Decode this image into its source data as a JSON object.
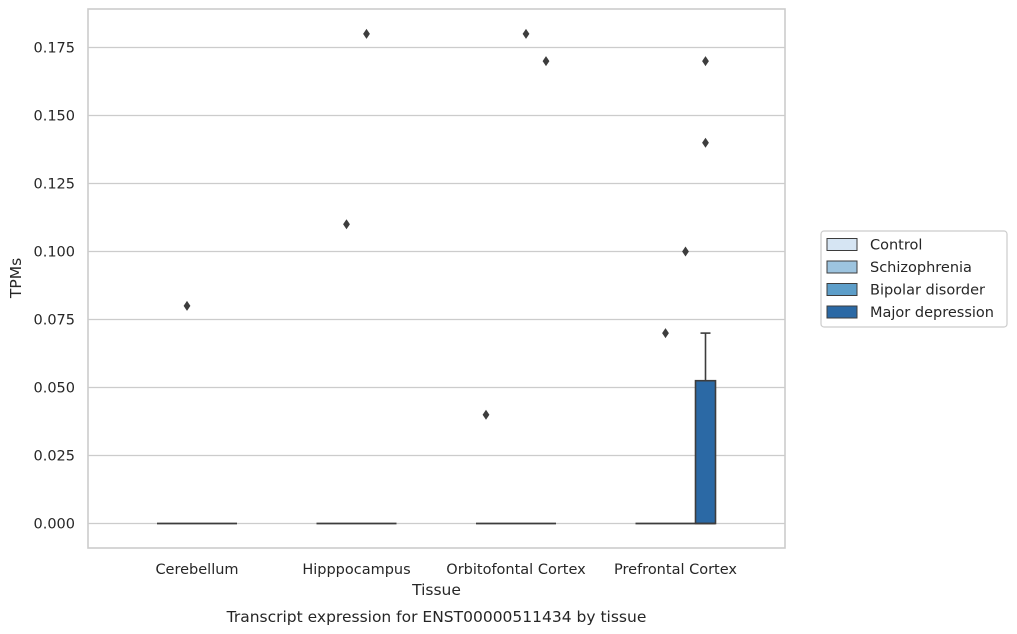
{
  "caption": "Transcript expression for ENST00000511434 by tissue",
  "chart_data": {
    "type": "box",
    "title": "",
    "xlabel": "Tissue",
    "ylabel": "TPMs",
    "ylim": [
      -0.009,
      0.189
    ],
    "yticks": [
      "0.000",
      "0.025",
      "0.050",
      "0.075",
      "0.100",
      "0.125",
      "0.150",
      "0.175"
    ],
    "ytick_values": [
      0,
      0.025,
      0.05,
      0.075,
      0.1,
      0.125,
      0.15,
      0.175
    ],
    "grid": "horizontal",
    "legend_position": "right",
    "categories": [
      "Cerebellum",
      "Hipppocampus",
      "Orbitofontal Cortex",
      "Prefrontal Cortex"
    ],
    "series": [
      {
        "name": "Control",
        "color": "#d6e5f3",
        "boxes": [
          {
            "q1": 0,
            "median": 0,
            "q3": 0,
            "whisker_low": 0,
            "whisker_high": 0,
            "outliers": []
          },
          {
            "q1": 0,
            "median": 0,
            "q3": 0,
            "whisker_low": 0,
            "whisker_high": 0,
            "outliers": []
          },
          {
            "q1": 0,
            "median": 0,
            "q3": 0,
            "whisker_low": 0,
            "whisker_high": 0,
            "outliers": [
              0.04
            ]
          },
          {
            "q1": 0,
            "median": 0,
            "q3": 0,
            "whisker_low": 0,
            "whisker_high": 0,
            "outliers": []
          }
        ]
      },
      {
        "name": "Schizophrenia",
        "color": "#9dc4df",
        "boxes": [
          {
            "q1": 0,
            "median": 0,
            "q3": 0,
            "whisker_low": 0,
            "whisker_high": 0,
            "outliers": [
              0.08
            ]
          },
          {
            "q1": 0,
            "median": 0,
            "q3": 0,
            "whisker_low": 0,
            "whisker_high": 0,
            "outliers": [
              0.11
            ]
          },
          {
            "q1": 0,
            "median": 0,
            "q3": 0,
            "whisker_low": 0,
            "whisker_high": 0,
            "outliers": []
          },
          {
            "q1": 0,
            "median": 0,
            "q3": 0,
            "whisker_low": 0,
            "whisker_high": 0,
            "outliers": [
              0.07
            ]
          }
        ]
      },
      {
        "name": "Bipolar disorder",
        "color": "#5d9ec9",
        "boxes": [
          {
            "q1": 0,
            "median": 0,
            "q3": 0,
            "whisker_low": 0,
            "whisker_high": 0,
            "outliers": []
          },
          {
            "q1": 0,
            "median": 0,
            "q3": 0,
            "whisker_low": 0,
            "whisker_high": 0,
            "outliers": [
              0.18
            ]
          },
          {
            "q1": 0,
            "median": 0,
            "q3": 0,
            "whisker_low": 0,
            "whisker_high": 0,
            "outliers": [
              0.18
            ]
          },
          {
            "q1": 0,
            "median": 0,
            "q3": 0,
            "whisker_low": 0,
            "whisker_high": 0,
            "outliers": [
              0.1
            ]
          }
        ]
      },
      {
        "name": "Major depression",
        "color": "#2b69a5",
        "boxes": [
          {
            "q1": 0,
            "median": 0,
            "q3": 0,
            "whisker_low": 0,
            "whisker_high": 0,
            "outliers": []
          },
          {
            "q1": 0,
            "median": 0,
            "q3": 0,
            "whisker_low": 0,
            "whisker_high": 0,
            "outliers": []
          },
          {
            "q1": 0,
            "median": 0,
            "q3": 0,
            "whisker_low": 0,
            "whisker_high": 0,
            "outliers": [
              0.17
            ]
          },
          {
            "q1": 0,
            "median": 0,
            "q3": 0.0525,
            "whisker_low": 0,
            "whisker_high": 0.07,
            "outliers": [
              0.17,
              0.14
            ]
          }
        ]
      }
    ]
  }
}
